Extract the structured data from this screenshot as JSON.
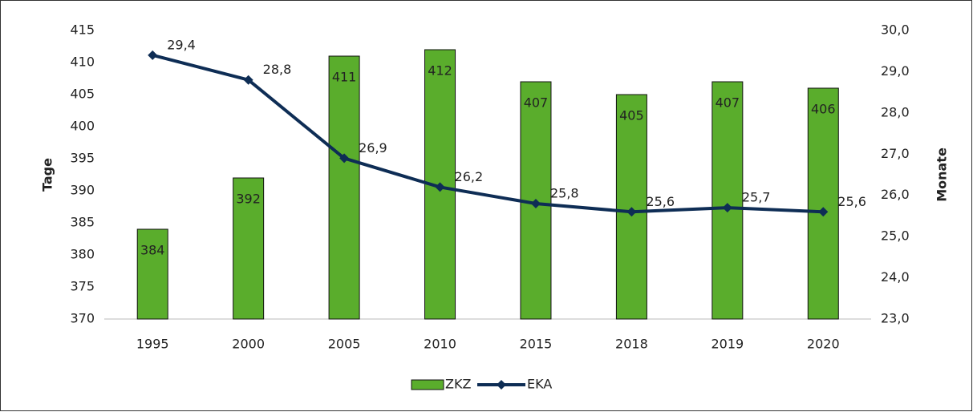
{
  "chart_data": {
    "type": "bar",
    "categories": [
      "1995",
      "2000",
      "2005",
      "2010",
      "2015",
      "2018",
      "2019",
      "2020"
    ],
    "series": [
      {
        "name": "ZKZ",
        "type": "bar",
        "color": "#5aad2c",
        "values": [
          384,
          392,
          411,
          412,
          407,
          405,
          407,
          406
        ]
      },
      {
        "name": "EKA",
        "type": "line",
        "axis": "y2",
        "color": "#0e2d55",
        "values": [
          29.4,
          28.8,
          26.9,
          26.2,
          25.8,
          25.6,
          25.7,
          25.6
        ],
        "value_labels": [
          "29,4",
          "28,8",
          "26,9",
          "26,2",
          "25,8",
          "25,6",
          "25,7",
          "25,6"
        ]
      }
    ],
    "ylabel": "Tage",
    "y2label": "Monate",
    "ylim": [
      370,
      415
    ],
    "yticks": [
      370,
      375,
      380,
      385,
      390,
      395,
      400,
      405,
      410,
      415
    ],
    "y2lim": [
      23,
      30
    ],
    "y2ticks": [
      {
        "value": 23,
        "label": "23,0"
      },
      {
        "value": 24,
        "label": "24,0"
      },
      {
        "value": 25,
        "label": "25,0"
      },
      {
        "value": 26,
        "label": "26,0"
      },
      {
        "value": 27,
        "label": "27,0"
      },
      {
        "value": 28,
        "label": "28,0"
      },
      {
        "value": 29,
        "label": "29,0"
      },
      {
        "value": 30,
        "label": "30,0"
      }
    ],
    "grid": false,
    "legend": "bottom"
  }
}
